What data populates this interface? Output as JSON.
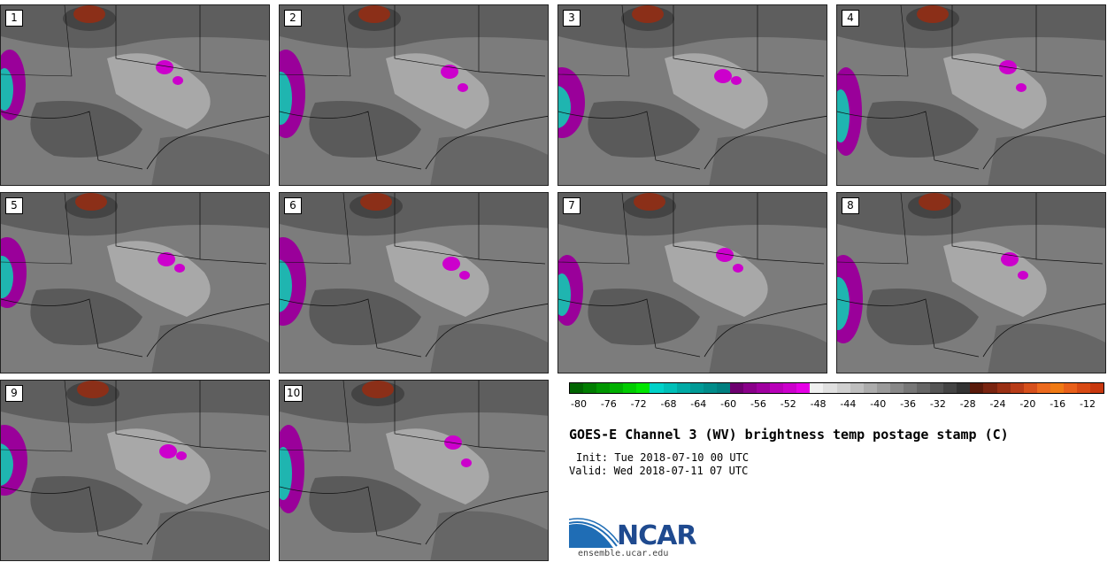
{
  "panels": [
    {
      "label": "1"
    },
    {
      "label": "2"
    },
    {
      "label": "3"
    },
    {
      "label": "4"
    },
    {
      "label": "5"
    },
    {
      "label": "6"
    },
    {
      "label": "7"
    },
    {
      "label": "8"
    },
    {
      "label": "9"
    },
    {
      "label": "10"
    }
  ],
  "colorbar": {
    "tick_labels": [
      "-80",
      "-76",
      "-72",
      "-68",
      "-64",
      "-60",
      "-56",
      "-52",
      "-48",
      "-44",
      "-40",
      "-36",
      "-32",
      "-28",
      "-24",
      "-20",
      "-16",
      "-12"
    ],
    "colors": [
      "#006400",
      "#007d00",
      "#009600",
      "#00b000",
      "#00cc00",
      "#00e600",
      "#00d2c8",
      "#00c0b8",
      "#00aaa5",
      "#009a96",
      "#008c8a",
      "#007f80",
      "#6e0070",
      "#8a008a",
      "#a000a0",
      "#b800b8",
      "#cc00cc",
      "#e600e6",
      "#f0f0f0",
      "#e0e0e0",
      "#d0d0d0",
      "#bebebe",
      "#acacac",
      "#9a9a9a",
      "#888888",
      "#777777",
      "#666666",
      "#555555",
      "#444444",
      "#333333",
      "#5a1a0a",
      "#7a2410",
      "#9a3014",
      "#b83c18",
      "#d6501c",
      "#ec6a1e",
      "#f07a14",
      "#e8601a",
      "#d84a14",
      "#c8380e"
    ]
  },
  "title": "GOES-E Channel 3 (WV) brightness temp postage stamp (C)",
  "init": "Init: Tue 2018-07-10 00 UTC",
  "valid": "Valid: Wed 2018-07-11 07 UTC",
  "logo": {
    "text": "NCAR",
    "url": "ensemble.ucar.edu"
  }
}
